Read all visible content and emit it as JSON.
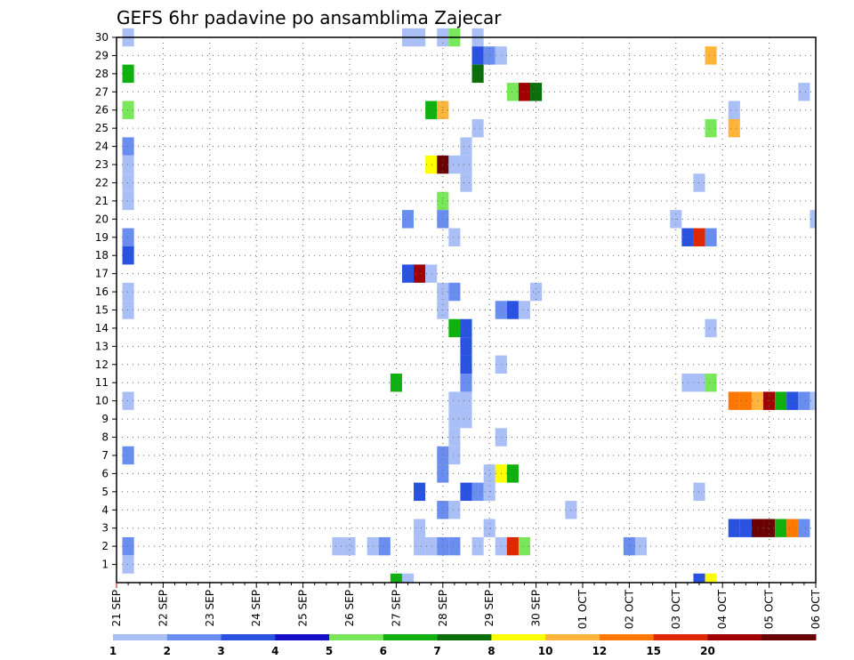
{
  "chart_data": {
    "type": "heatmap",
    "title": "GEFS 6hr padavine po ansamblima Zajecar",
    "x_tick_labels": [
      "21 SEP",
      "22 SEP",
      "23 SEP",
      "24 SEP",
      "25 SEP",
      "26 SEP",
      "27 SEP",
      "28 SEP",
      "29 SEP",
      "30 SEP",
      "01 OCT",
      "02 OCT",
      "03 OCT",
      "04 OCT",
      "05 OCT",
      "06 OCT"
    ],
    "y_tick_labels": [
      "1",
      "2",
      "3",
      "4",
      "5",
      "6",
      "7",
      "8",
      "9",
      "10",
      "11",
      "12",
      "13",
      "14",
      "15",
      "16",
      "17",
      "18",
      "19",
      "20",
      "21",
      "22",
      "23",
      "24",
      "25",
      "26",
      "27",
      "28",
      "29",
      "30"
    ],
    "xlim": [
      0,
      15
    ],
    "ylim": [
      0,
      30
    ],
    "grid": "dotted",
    "legend": {
      "placement": "bottom",
      "labels": [
        "1",
        "2",
        "3",
        "4",
        "5",
        "6",
        "7",
        "8",
        "10",
        "12",
        "15",
        "20"
      ],
      "colors": [
        "#aabff5",
        "#6a8ef0",
        "#2a52e0",
        "#1410c8",
        "#78e85a",
        "#10b010",
        "#0a6e0a",
        "#ffff00",
        "#ffb43c",
        "#ff7800",
        "#e02800",
        "#a00000",
        "#6a0000"
      ]
    },
    "value_colors": {
      "1": "#aabff5",
      "2": "#6a8ef0",
      "3": "#2a52e0",
      "5": "#78e85a",
      "6": "#10b010",
      "7": "#0a6e0a",
      "8": "#ffff00",
      "10": "#ffb43c",
      "12": "#ff7800",
      "15": "#e02800",
      "20": "#a00000",
      "25": "#6a0000"
    },
    "members": [
      {
        "member": 30,
        "cells": [
          [
            0.25,
            1
          ],
          [
            6.25,
            1
          ],
          [
            6.5,
            1
          ],
          [
            7.0,
            1
          ],
          [
            7.25,
            5
          ],
          [
            7.75,
            1
          ]
        ]
      },
      {
        "member": 29,
        "cells": [
          [
            7.75,
            3
          ],
          [
            8.0,
            2
          ],
          [
            8.25,
            1
          ],
          [
            12.75,
            10
          ]
        ]
      },
      {
        "member": 28,
        "cells": [
          [
            0.25,
            6
          ],
          [
            7.75,
            7
          ]
        ]
      },
      {
        "member": 27,
        "cells": [
          [
            8.5,
            5
          ],
          [
            8.75,
            20
          ],
          [
            9.0,
            7
          ],
          [
            14.75,
            1
          ]
        ]
      },
      {
        "member": 26,
        "cells": [
          [
            0.25,
            5
          ],
          [
            6.75,
            6
          ],
          [
            7.0,
            10
          ],
          [
            13.25,
            1
          ]
        ]
      },
      {
        "member": 25,
        "cells": [
          [
            7.75,
            1
          ],
          [
            12.75,
            5
          ],
          [
            13.25,
            10
          ]
        ]
      },
      {
        "member": 24,
        "cells": [
          [
            0.25,
            2
          ],
          [
            7.5,
            1
          ]
        ]
      },
      {
        "member": 23,
        "cells": [
          [
            0.25,
            1
          ],
          [
            6.75,
            8
          ],
          [
            7.0,
            25
          ],
          [
            7.25,
            1
          ],
          [
            7.5,
            1
          ]
        ]
      },
      {
        "member": 22,
        "cells": [
          [
            0.25,
            1
          ],
          [
            7.5,
            1
          ],
          [
            12.5,
            1
          ]
        ]
      },
      {
        "member": 21,
        "cells": [
          [
            0.25,
            1
          ],
          [
            7.0,
            5
          ]
        ]
      },
      {
        "member": 20,
        "cells": [
          [
            6.25,
            2
          ],
          [
            7.0,
            2
          ],
          [
            12.0,
            1
          ],
          [
            15.0,
            1
          ]
        ]
      },
      {
        "member": 19,
        "cells": [
          [
            0.25,
            2
          ],
          [
            7.25,
            1
          ],
          [
            12.25,
            3
          ],
          [
            12.5,
            15
          ],
          [
            12.75,
            2
          ]
        ]
      },
      {
        "member": 18,
        "cells": [
          [
            0.25,
            3
          ]
        ]
      },
      {
        "member": 17,
        "cells": [
          [
            6.25,
            3
          ],
          [
            6.5,
            20
          ],
          [
            6.75,
            1
          ]
        ]
      },
      {
        "member": 16,
        "cells": [
          [
            0.25,
            1
          ],
          [
            7.0,
            1
          ],
          [
            7.25,
            2
          ],
          [
            9.0,
            1
          ]
        ]
      },
      {
        "member": 15,
        "cells": [
          [
            0.25,
            1
          ],
          [
            7.0,
            1
          ],
          [
            8.25,
            2
          ],
          [
            8.5,
            3
          ],
          [
            8.75,
            1
          ]
        ]
      },
      {
        "member": 14,
        "cells": [
          [
            7.25,
            6
          ],
          [
            7.5,
            3
          ],
          [
            12.75,
            1
          ]
        ]
      },
      {
        "member": 13,
        "cells": [
          [
            7.5,
            3
          ]
        ]
      },
      {
        "member": 12,
        "cells": [
          [
            7.5,
            3
          ],
          [
            8.25,
            1
          ]
        ]
      },
      {
        "member": 11,
        "cells": [
          [
            6.0,
            6
          ],
          [
            7.5,
            2
          ],
          [
            12.25,
            1
          ],
          [
            12.5,
            1
          ],
          [
            12.75,
            5
          ]
        ]
      },
      {
        "member": 10,
        "cells": [
          [
            0.25,
            1
          ],
          [
            7.25,
            1
          ],
          [
            7.5,
            1
          ],
          [
            13.25,
            12
          ],
          [
            13.5,
            12
          ],
          [
            13.75,
            10
          ],
          [
            14.0,
            20
          ],
          [
            14.25,
            6
          ],
          [
            14.5,
            3
          ],
          [
            14.75,
            2
          ],
          [
            15.0,
            1
          ]
        ]
      },
      {
        "member": 9,
        "cells": [
          [
            7.25,
            1
          ],
          [
            7.5,
            1
          ]
        ]
      },
      {
        "member": 8,
        "cells": [
          [
            7.25,
            1
          ],
          [
            8.25,
            1
          ]
        ]
      },
      {
        "member": 7,
        "cells": [
          [
            0.25,
            2
          ],
          [
            7.0,
            2
          ],
          [
            7.25,
            1
          ]
        ]
      },
      {
        "member": 6,
        "cells": [
          [
            7.0,
            2
          ],
          [
            8.0,
            1
          ],
          [
            8.25,
            8
          ],
          [
            8.5,
            6
          ]
        ]
      },
      {
        "member": 5,
        "cells": [
          [
            6.5,
            3
          ],
          [
            7.5,
            3
          ],
          [
            7.75,
            2
          ],
          [
            8.0,
            1
          ],
          [
            12.5,
            1
          ]
        ]
      },
      {
        "member": 4,
        "cells": [
          [
            7.0,
            2
          ],
          [
            7.25,
            1
          ],
          [
            9.75,
            1
          ]
        ]
      },
      {
        "member": 3,
        "cells": [
          [
            6.5,
            1
          ],
          [
            8.0,
            1
          ],
          [
            13.25,
            3
          ],
          [
            13.5,
            3
          ],
          [
            13.75,
            25
          ],
          [
            14.0,
            25
          ],
          [
            14.25,
            6
          ],
          [
            14.5,
            12
          ],
          [
            14.75,
            2
          ]
        ]
      },
      {
        "member": 2,
        "cells": [
          [
            0.25,
            2
          ],
          [
            4.75,
            1
          ],
          [
            5.0,
            1
          ],
          [
            5.5,
            1
          ],
          [
            5.75,
            2
          ],
          [
            6.5,
            1
          ],
          [
            6.75,
            1
          ],
          [
            7.0,
            2
          ],
          [
            7.25,
            2
          ],
          [
            7.75,
            1
          ],
          [
            8.25,
            1
          ],
          [
            8.5,
            15
          ],
          [
            8.75,
            5
          ],
          [
            11.0,
            2
          ],
          [
            11.25,
            1
          ]
        ]
      },
      {
        "member": 1,
        "cells": [
          [
            0.25,
            1
          ]
        ]
      },
      {
        "member": 0,
        "cells": [
          [
            6.0,
            6
          ],
          [
            6.25,
            1
          ],
          [
            12.5,
            3
          ],
          [
            12.75,
            8
          ]
        ]
      }
    ]
  }
}
